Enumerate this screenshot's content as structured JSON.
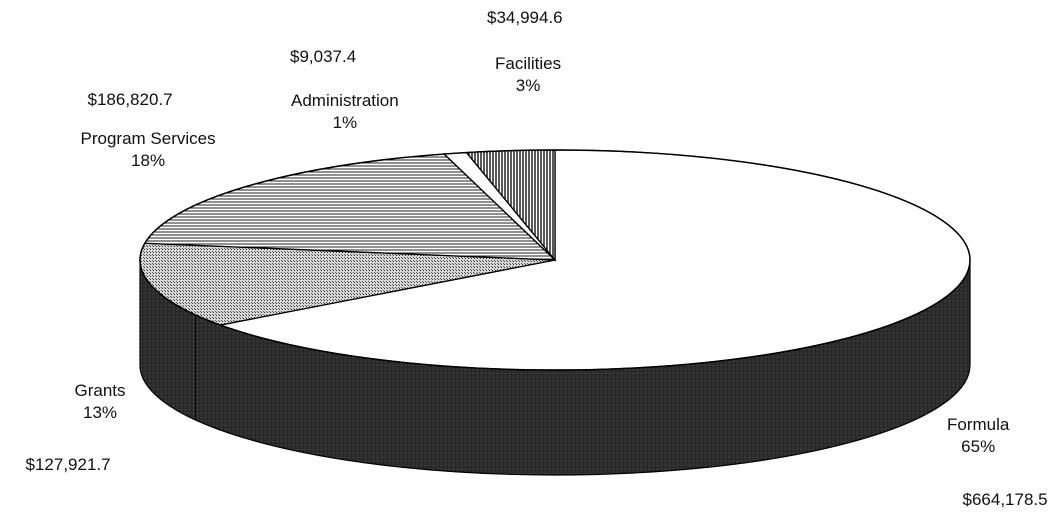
{
  "chart_data": {
    "type": "pie",
    "style": "3d-exploded-tilted",
    "title": "",
    "slices": [
      {
        "name": "Formula",
        "percent": "65%",
        "amount": "$664,178.5",
        "value": 664178.5,
        "pattern": "white"
      },
      {
        "name": "Grants",
        "percent": "13%",
        "amount": "$127,921.7",
        "value": 127921.7,
        "pattern": "fine-grid"
      },
      {
        "name": "Program Services",
        "percent": "18%",
        "amount": "$186,820.7",
        "value": 186820.7,
        "pattern": "horizontal-lines"
      },
      {
        "name": "Administration",
        "percent": "1%",
        "amount": "$9,037.4",
        "value": 9037.4,
        "pattern": "white"
      },
      {
        "name": "Facilities",
        "percent": "3%",
        "amount": "$34,994.6",
        "value": 34994.6,
        "pattern": "vertical-lines"
      }
    ],
    "side_color": "#2a2a2a"
  }
}
